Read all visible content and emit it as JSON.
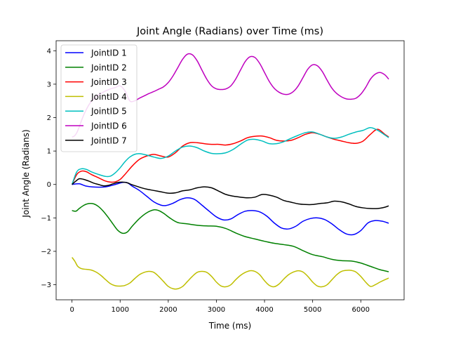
{
  "chart_data": {
    "type": "line",
    "title": "Joint Angle (Radians) over Time (ms)",
    "xlabel": "Time (ms)",
    "ylabel": "Joint Angle (Radians)",
    "xlim": [
      -330,
      6900
    ],
    "ylim": [
      -3.45,
      4.3
    ],
    "xticks": [
      0,
      1000,
      2000,
      3000,
      4000,
      5000,
      6000
    ],
    "yticks": [
      -3,
      -2,
      -1,
      0,
      1,
      2,
      3,
      4
    ],
    "xtick_labels": [
      "0",
      "1000",
      "2000",
      "3000",
      "4000",
      "5000",
      "6000"
    ],
    "ytick_labels": [
      "−3",
      "−2",
      "−1",
      "0",
      "1",
      "2",
      "3",
      "4"
    ],
    "grid": false,
    "legend_position": "top-left",
    "series": [
      {
        "name": "JointID 1",
        "color": "#0000ff",
        "x": [
          0,
          150,
          300,
          500,
          700,
          900,
          1050,
          1150,
          1250,
          1400,
          1550,
          1700,
          1850,
          1950,
          2100,
          2250,
          2400,
          2550,
          2700,
          2850,
          3000,
          3150,
          3300,
          3450,
          3600,
          3750,
          3900,
          4050,
          4200,
          4350,
          4500,
          4650,
          4800,
          4950,
          5100,
          5250,
          5400,
          5550,
          5700,
          5850,
          6000,
          6150,
          6300,
          6450,
          6580
        ],
        "y": [
          0,
          0.02,
          -0.05,
          -0.08,
          -0.07,
          0.0,
          0.06,
          0.05,
          -0.05,
          -0.18,
          -0.35,
          -0.52,
          -0.62,
          -0.63,
          -0.56,
          -0.45,
          -0.4,
          -0.45,
          -0.62,
          -0.8,
          -0.97,
          -1.06,
          -1.03,
          -0.9,
          -0.8,
          -0.78,
          -0.82,
          -0.95,
          -1.15,
          -1.3,
          -1.33,
          -1.25,
          -1.1,
          -1.02,
          -1.0,
          -1.05,
          -1.18,
          -1.35,
          -1.48,
          -1.5,
          -1.38,
          -1.15,
          -1.08,
          -1.1,
          -1.16
        ]
      },
      {
        "name": "JointID 2",
        "color": "#008000",
        "x": [
          0,
          80,
          150,
          250,
          350,
          450,
          550,
          650,
          750,
          850,
          950,
          1050,
          1150,
          1250,
          1400,
          1550,
          1700,
          1800,
          1900,
          2050,
          2200,
          2400,
          2600,
          2800,
          3000,
          3200,
          3400,
          3600,
          3800,
          4000,
          4200,
          4400,
          4600,
          4800,
          5000,
          5200,
          5400,
          5600,
          5800,
          6000,
          6200,
          6400,
          6580
        ],
        "y": [
          -0.78,
          -0.8,
          -0.72,
          -0.62,
          -0.57,
          -0.58,
          -0.66,
          -0.8,
          -0.98,
          -1.18,
          -1.37,
          -1.46,
          -1.42,
          -1.25,
          -1.02,
          -0.85,
          -0.76,
          -0.78,
          -0.86,
          -1.02,
          -1.14,
          -1.18,
          -1.22,
          -1.24,
          -1.25,
          -1.32,
          -1.45,
          -1.56,
          -1.63,
          -1.7,
          -1.76,
          -1.8,
          -1.85,
          -1.98,
          -2.1,
          -2.16,
          -2.24,
          -2.28,
          -2.29,
          -2.35,
          -2.45,
          -2.55,
          -2.61
        ]
      },
      {
        "name": "JointID 3",
        "color": "#ff0000",
        "x": [
          0,
          100,
          200,
          300,
          400,
          550,
          700,
          800,
          900,
          1000,
          1100,
          1250,
          1400,
          1550,
          1700,
          1850,
          2000,
          2150,
          2300,
          2450,
          2600,
          2750,
          2900,
          3050,
          3200,
          3350,
          3500,
          3650,
          3800,
          3950,
          4100,
          4250,
          4400,
          4550,
          4700,
          4850,
          5000,
          5150,
          5300,
          5450,
          5600,
          5750,
          5900,
          6050,
          6200,
          6350,
          6500,
          6580
        ],
        "y": [
          0,
          0.3,
          0.4,
          0.38,
          0.3,
          0.2,
          0.1,
          0.07,
          0.08,
          0.15,
          0.3,
          0.55,
          0.75,
          0.85,
          0.9,
          0.85,
          0.82,
          0.95,
          1.15,
          1.25,
          1.25,
          1.22,
          1.2,
          1.2,
          1.18,
          1.22,
          1.3,
          1.4,
          1.44,
          1.45,
          1.4,
          1.32,
          1.3,
          1.32,
          1.4,
          1.5,
          1.55,
          1.5,
          1.42,
          1.35,
          1.3,
          1.25,
          1.23,
          1.3,
          1.5,
          1.65,
          1.5,
          1.42
        ]
      },
      {
        "name": "JointID 4",
        "color": "#bfbf00",
        "x": [
          0,
          60,
          120,
          200,
          300,
          400,
          500,
          600,
          700,
          800,
          900,
          1000,
          1100,
          1200,
          1300,
          1400,
          1500,
          1600,
          1700,
          1800,
          1900,
          2000,
          2100,
          2200,
          2300,
          2400,
          2500,
          2600,
          2700,
          2800,
          2900,
          3000,
          3100,
          3200,
          3300,
          3400,
          3500,
          3600,
          3700,
          3800,
          3900,
          4000,
          4100,
          4200,
          4300,
          4400,
          4500,
          4600,
          4700,
          4800,
          4900,
          5000,
          5100,
          5200,
          5300,
          5400,
          5500,
          5600,
          5700,
          5800,
          5900,
          6000,
          6100,
          6200,
          6300,
          6400,
          6500,
          6580
        ],
        "y": [
          -2.18,
          -2.3,
          -2.45,
          -2.52,
          -2.54,
          -2.56,
          -2.62,
          -2.72,
          -2.85,
          -2.97,
          -3.03,
          -3.04,
          -3.02,
          -2.95,
          -2.82,
          -2.7,
          -2.63,
          -2.6,
          -2.63,
          -2.75,
          -2.9,
          -3.05,
          -3.12,
          -3.12,
          -3.05,
          -2.9,
          -2.75,
          -2.63,
          -2.6,
          -2.63,
          -2.75,
          -2.92,
          -3.04,
          -3.06,
          -3.0,
          -2.85,
          -2.72,
          -2.63,
          -2.58,
          -2.6,
          -2.7,
          -2.88,
          -3.02,
          -3.06,
          -2.98,
          -2.83,
          -2.7,
          -2.62,
          -2.58,
          -2.62,
          -2.75,
          -2.92,
          -3.04,
          -3.06,
          -3.0,
          -2.85,
          -2.7,
          -2.6,
          -2.57,
          -2.57,
          -2.62,
          -2.75,
          -2.92,
          -3.05,
          -3.0,
          -2.92,
          -2.85,
          -2.8
        ]
      },
      {
        "name": "JointID 5",
        "color": "#00bfbf",
        "x": [
          0,
          100,
          200,
          300,
          400,
          550,
          700,
          800,
          900,
          1000,
          1100,
          1200,
          1300,
          1400,
          1550,
          1700,
          1850,
          2000,
          2150,
          2300,
          2450,
          2600,
          2750,
          2900,
          3050,
          3200,
          3350,
          3500,
          3650,
          3800,
          3950,
          4100,
          4250,
          4400,
          4550,
          4700,
          4850,
          5000,
          5150,
          5300,
          5450,
          5600,
          5750,
          5900,
          6050,
          6200,
          6350,
          6500,
          6580
        ],
        "y": [
          0,
          0.38,
          0.47,
          0.45,
          0.38,
          0.3,
          0.24,
          0.25,
          0.35,
          0.5,
          0.68,
          0.82,
          0.9,
          0.92,
          0.88,
          0.82,
          0.78,
          0.85,
          1.0,
          1.12,
          1.15,
          1.1,
          1.0,
          0.93,
          0.92,
          0.95,
          1.05,
          1.2,
          1.33,
          1.35,
          1.3,
          1.22,
          1.22,
          1.28,
          1.38,
          1.47,
          1.55,
          1.57,
          1.5,
          1.42,
          1.38,
          1.42,
          1.5,
          1.57,
          1.62,
          1.7,
          1.62,
          1.48,
          1.4
        ]
      },
      {
        "name": "JointID 6",
        "color": "#bf00bf",
        "x": [
          0,
          50,
          100,
          150,
          200,
          250,
          300,
          350,
          400,
          450,
          500,
          550,
          600,
          650,
          700,
          750,
          800,
          900,
          1000,
          1100,
          1200,
          1300,
          1400,
          1500,
          1600,
          1700,
          1800,
          1900,
          2000,
          2100,
          2200,
          2300,
          2400,
          2500,
          2600,
          2700,
          2800,
          2900,
          3000,
          3100,
          3200,
          3300,
          3400,
          3500,
          3600,
          3700,
          3800,
          3900,
          4000,
          4100,
          4200,
          4300,
          4400,
          4500,
          4600,
          4700,
          4800,
          4900,
          5000,
          5100,
          5200,
          5300,
          5400,
          5500,
          5600,
          5700,
          5800,
          5900,
          6000,
          6100,
          6200,
          6300,
          6400,
          6500,
          6580
        ],
        "y": [
          1.42,
          1.45,
          1.55,
          1.72,
          1.92,
          2.1,
          2.25,
          2.38,
          2.48,
          2.55,
          2.62,
          2.68,
          2.72,
          2.76,
          2.8,
          2.83,
          2.86,
          2.9,
          2.95,
          2.8,
          2.5,
          2.5,
          2.58,
          2.65,
          2.72,
          2.78,
          2.85,
          2.92,
          3.05,
          3.25,
          3.5,
          3.75,
          3.9,
          3.88,
          3.7,
          3.42,
          3.15,
          2.95,
          2.86,
          2.84,
          2.86,
          2.95,
          3.15,
          3.42,
          3.68,
          3.82,
          3.8,
          3.62,
          3.35,
          3.08,
          2.88,
          2.76,
          2.7,
          2.7,
          2.78,
          2.95,
          3.2,
          3.45,
          3.58,
          3.55,
          3.38,
          3.12,
          2.88,
          2.72,
          2.62,
          2.56,
          2.55,
          2.58,
          2.7,
          2.9,
          3.15,
          3.3,
          3.35,
          3.28,
          3.15
        ]
      },
      {
        "name": "JointID 7",
        "color": "#000000",
        "x": [
          0,
          80,
          150,
          250,
          350,
          450,
          550,
          650,
          750,
          850,
          950,
          1050,
          1150,
          1250,
          1400,
          1550,
          1700,
          1850,
          2000,
          2150,
          2300,
          2450,
          2600,
          2750,
          2900,
          3050,
          3200,
          3350,
          3500,
          3650,
          3800,
          3950,
          4100,
          4250,
          4400,
          4550,
          4700,
          4850,
          5000,
          5150,
          5300,
          5450,
          5600,
          5750,
          5900,
          6050,
          6200,
          6350,
          6500,
          6580
        ],
        "y": [
          0,
          0.1,
          0.17,
          0.15,
          0.1,
          0.04,
          0.0,
          -0.04,
          -0.03,
          0.02,
          0.06,
          0.07,
          0.05,
          -0.01,
          -0.08,
          -0.14,
          -0.18,
          -0.22,
          -0.26,
          -0.25,
          -0.19,
          -0.16,
          -0.1,
          -0.07,
          -0.1,
          -0.2,
          -0.3,
          -0.35,
          -0.38,
          -0.4,
          -0.38,
          -0.3,
          -0.32,
          -0.38,
          -0.48,
          -0.53,
          -0.58,
          -0.6,
          -0.6,
          -0.57,
          -0.55,
          -0.5,
          -0.52,
          -0.58,
          -0.66,
          -0.7,
          -0.72,
          -0.72,
          -0.68,
          -0.64
        ]
      }
    ]
  }
}
